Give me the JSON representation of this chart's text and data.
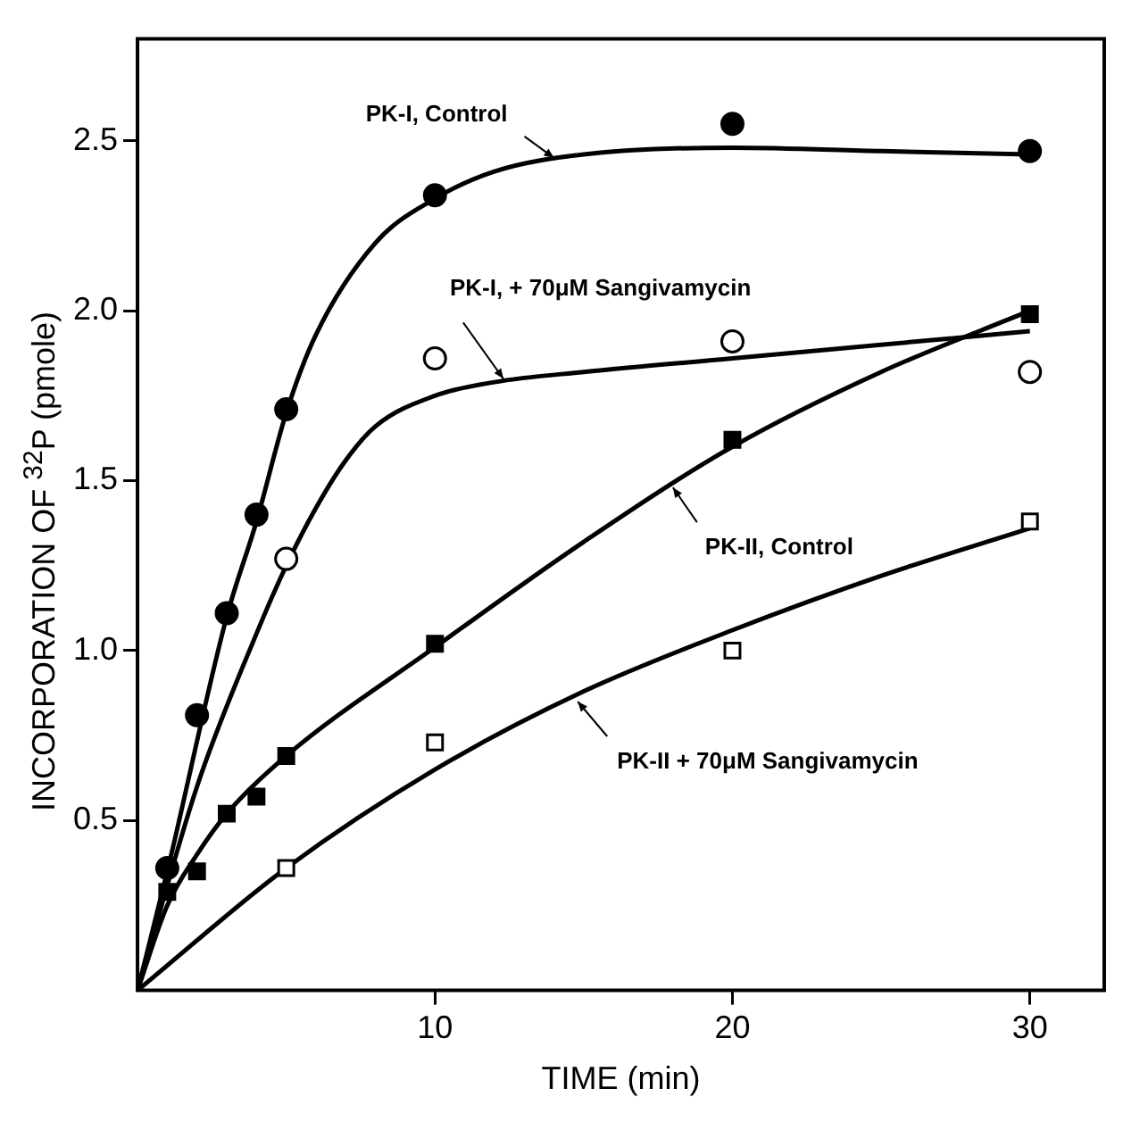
{
  "chart_data": {
    "type": "scatter",
    "xlabel": "TIME (min)",
    "ylabel": "INCORPORATION OF $^{32}$P (pmole)",
    "xlim": [
      0,
      32.5
    ],
    "ylim": [
      0,
      2.8
    ],
    "xticks": [
      10,
      20,
      30
    ],
    "yticks": [
      0.5,
      {
        "value": 1,
        "label": "1.0"
      },
      1.5,
      {
        "value": 2,
        "label": "2.0"
      },
      2.5
    ],
    "legend": false,
    "series": [
      {
        "type": "scatter",
        "marker": "circle",
        "color": "#000000",
        "x": [
          1,
          2,
          3,
          4,
          5,
          10,
          20,
          30
        ],
        "values": [
          0.36,
          0.81,
          1.11,
          1.4,
          1.71,
          2.34,
          2.55,
          2.47
        ]
      },
      {
        "type": "scatter",
        "marker": "circle",
        "color": "#ffffff",
        "x": [
          5,
          10,
          20,
          30
        ],
        "values": [
          1.27,
          1.86,
          1.91,
          1.82
        ]
      },
      {
        "type": "scatter",
        "marker": "square",
        "color": "#000000",
        "x": [
          1,
          2,
          3,
          4,
          5,
          10,
          20,
          30
        ],
        "values": [
          0.29,
          0.35,
          0.52,
          0.57,
          0.69,
          1.02,
          1.62,
          1.99
        ]
      },
      {
        "type": "scatter",
        "marker": "square",
        "color": "#ffffff",
        "x": [
          5,
          10,
          20,
          30
        ],
        "values": [
          0.36,
          0.73,
          1.0,
          1.38
        ]
      },
      {
        "type": "line",
        "color": "#000000",
        "x": [
          0,
          1,
          3,
          4,
          5,
          6,
          8,
          10,
          12,
          15,
          20,
          25,
          30
        ],
        "values": [
          0,
          0.35,
          1.1,
          1.38,
          1.7,
          1.93,
          2.2,
          2.33,
          2.41,
          2.46,
          2.48,
          2.47,
          2.46
        ]
      },
      {
        "type": "line",
        "color": "#000000",
        "x": [
          0,
          2,
          4,
          5,
          6,
          7,
          8,
          10,
          12,
          15,
          20,
          25,
          30
        ],
        "values": [
          0,
          0.6,
          1.05,
          1.25,
          1.42,
          1.56,
          1.66,
          1.75,
          1.79,
          1.82,
          1.86,
          1.9,
          1.94
        ]
      },
      {
        "type": "line",
        "color": "#000000",
        "x": [
          0,
          1,
          2,
          3,
          5,
          10,
          15,
          20,
          25,
          30
        ],
        "values": [
          0,
          0.25,
          0.4,
          0.52,
          0.69,
          1.01,
          1.32,
          1.6,
          1.82,
          2.0
        ]
      },
      {
        "type": "line",
        "color": "#000000",
        "x": [
          0,
          5,
          10,
          15,
          20,
          25,
          30
        ],
        "values": [
          0,
          0.36,
          0.65,
          0.88,
          1.06,
          1.22,
          1.36
        ]
      }
    ],
    "annotations": [
      {
        "text": "PK-I, Control",
        "x": 14,
        "y": 2.45
      },
      {
        "text": "PK-I, + 70μM Sangivamycin",
        "x": 12.3,
        "y": 1.8
      },
      {
        "text": "PK-II, Control",
        "x": 18,
        "y": 1.48
      },
      {
        "text": "PK-II + 70μM Sangivamycin",
        "x": 14.8,
        "y": 0.85
      }
    ]
  }
}
